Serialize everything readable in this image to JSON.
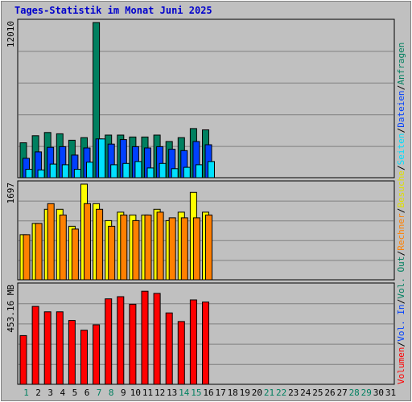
{
  "title": "Tages-Statistik im Monat Juni 2025",
  "chart_data": {
    "type": "bar",
    "title": "Tages-Statistik im Monat Juni 2025",
    "days": 31,
    "weekend_days": [
      1,
      7,
      8,
      14,
      15,
      21,
      22,
      28,
      29
    ],
    "x_labels": [
      "1",
      "2",
      "3",
      "4",
      "5",
      "6",
      "7",
      "8",
      "9",
      "10",
      "11",
      "12",
      "13",
      "14",
      "15",
      "16",
      "17",
      "18",
      "19",
      "20",
      "21",
      "22",
      "23",
      "24",
      "25",
      "26",
      "27",
      "28",
      "29",
      "30",
      "31"
    ],
    "panels": [
      {
        "id": "requests",
        "max_label": "12010",
        "ylim": [
          0,
          12010
        ],
        "series": [
          {
            "name": "Anfragen",
            "color": "#008060",
            "values": [
              2700,
              3250,
              3500,
              3400,
              2900,
              3100,
              12010,
              3300,
              3300,
              3150,
              3150,
              3300,
              2800,
              3100,
              3800,
              3700,
              0,
              0,
              0,
              0,
              0,
              0,
              0,
              0,
              0,
              0,
              0,
              0,
              0,
              0,
              0
            ]
          },
          {
            "name": "Dateien",
            "color": "#0040ff",
            "values": [
              1500,
              2000,
              2350,
              2400,
              1750,
              2300,
              3000,
              2600,
              2950,
              2400,
              2300,
              2400,
              2200,
              2100,
              2800,
              2550,
              0,
              0,
              0,
              0,
              0,
              0,
              0,
              0,
              0,
              0,
              0,
              0,
              0,
              0,
              0
            ]
          },
          {
            "name": "Seiten",
            "color": "#00e0ff",
            "values": [
              650,
              600,
              1050,
              1000,
              650,
              1200,
              3000,
              1000,
              1100,
              1250,
              750,
              1100,
              700,
              800,
              1000,
              1250,
              0,
              0,
              0,
              0,
              0,
              0,
              0,
              0,
              0,
              0,
              0,
              0,
              0,
              0,
              0
            ]
          }
        ]
      },
      {
        "id": "visits",
        "max_label": "1697",
        "ylim": [
          0,
          1697
        ],
        "series": [
          {
            "name": "Besuche",
            "color": "#ffff00",
            "values": [
              800,
              1000,
              1250,
              1250,
              950,
              1697,
              1350,
              1050,
              1200,
              1150,
              1150,
              1250,
              1050,
              1200,
              1550,
              1200,
              0,
              0,
              0,
              0,
              0,
              0,
              0,
              0,
              0,
              0,
              0,
              0,
              0,
              0,
              0
            ]
          },
          {
            "name": "Rechner",
            "color": "#ff8000",
            "values": [
              800,
              1000,
              1350,
              1150,
              900,
              1350,
              1250,
              950,
              1150,
              1050,
              1150,
              1200,
              1100,
              1100,
              1100,
              1150,
              0,
              0,
              0,
              0,
              0,
              0,
              0,
              0,
              0,
              0,
              0,
              0,
              0,
              0,
              0
            ]
          }
        ]
      },
      {
        "id": "volume",
        "max_label": "453.16 MB",
        "ylim": [
          0,
          453.16
        ],
        "series": [
          {
            "name": "Volumen",
            "color": "#ff0000",
            "values": [
              225,
              360,
              335,
              335,
              295,
              250,
              275,
              395,
              405,
              370,
              430,
              420,
              330,
              290,
              390,
              380,
              0,
              0,
              0,
              0,
              0,
              0,
              0,
              0,
              0,
              0,
              0,
              0,
              0,
              0,
              0
            ]
          }
        ]
      }
    ],
    "legend": [
      {
        "text": "Volumen",
        "color": "#ff0000"
      },
      {
        "text": "Vol. In",
        "color": "#0040ff"
      },
      {
        "text": "Vol. Out",
        "color": "#008060"
      },
      {
        "text": "Rechner",
        "color": "#ff8000"
      },
      {
        "text": "Besuche",
        "color": "#e0e000"
      },
      {
        "text": "Seiten",
        "color": "#00e0ff"
      },
      {
        "text": "Dateien",
        "color": "#0040ff"
      },
      {
        "text": "Anfragen",
        "color": "#008060"
      }
    ],
    "legend_separator": "/",
    "colors": {
      "background": "#c0c0c0",
      "panel_bg": "#c0c0c0",
      "grid": "#808080",
      "weekday_label": "#000000",
      "weekend_label": "#008060",
      "title": "#0000cc"
    }
  }
}
